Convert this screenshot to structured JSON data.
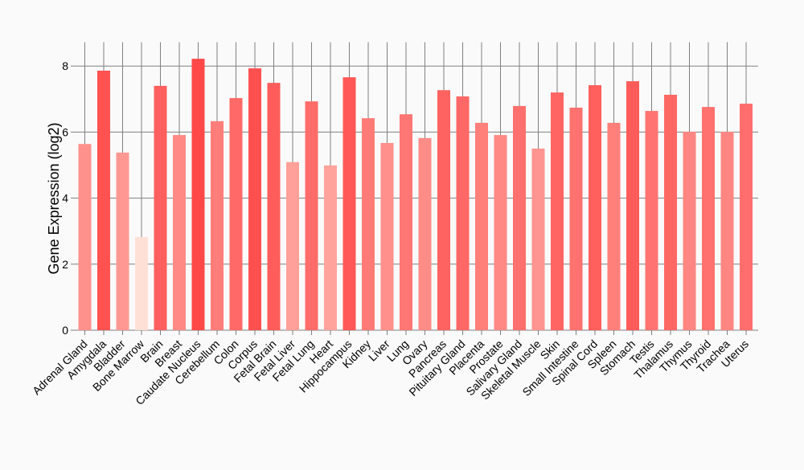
{
  "chart_data": {
    "type": "bar",
    "title": "",
    "xlabel": "",
    "ylabel": "Gene Expression (log2)",
    "ylim": [
      0,
      8.6
    ],
    "yticks": [
      0,
      2,
      4,
      6,
      8
    ],
    "grid": true,
    "categories": [
      "Adrenal Gland",
      "Amygdala",
      "Bladder",
      "Bone Marrow",
      "Brain",
      "Breast",
      "Caudate Nucleus",
      "Cerebellum",
      "Colon",
      "Corpus",
      "Fetal Brain",
      "Fetal Liver",
      "Fetal Lung",
      "Heart",
      "Hippocampus",
      "Kidney",
      "Liver",
      "Lung",
      "Ovary",
      "Pancreas",
      "Pituitary Gland",
      "Placenta",
      "Prostate",
      "Salivary Gland",
      "Skeletal Muscle",
      "Skin",
      "Small Intestine",
      "Spinal Cord",
      "Spleen",
      "Stomach",
      "Testis",
      "Thalamus",
      "Thymus",
      "Thyroid",
      "Trachea",
      "Uterus"
    ],
    "values": [
      5.64,
      7.86,
      5.38,
      2.82,
      7.4,
      5.91,
      8.22,
      6.33,
      7.03,
      7.93,
      7.49,
      5.09,
      6.93,
      4.99,
      7.66,
      6.42,
      5.67,
      6.54,
      5.82,
      7.27,
      7.08,
      6.28,
      5.91,
      6.79,
      5.5,
      7.2,
      6.74,
      7.42,
      6.28,
      7.54,
      6.64,
      7.13,
      6.01,
      6.76,
      6.01,
      6.86
    ],
    "color_low": "#ffe0d6",
    "color_high": "#ff4848"
  }
}
